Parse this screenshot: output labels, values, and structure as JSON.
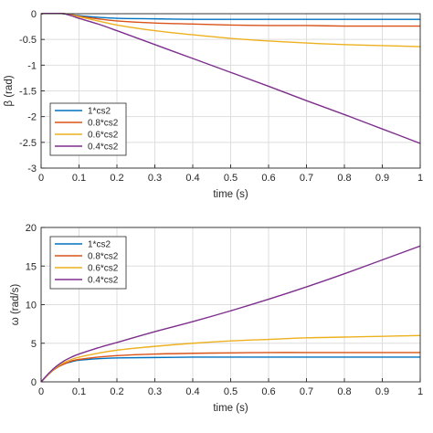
{
  "chart_data": [
    {
      "type": "line",
      "title": "",
      "xlabel": "time (s)",
      "ylabel": "β (rad)",
      "xlim": [
        0,
        1
      ],
      "ylim": [
        -3,
        0
      ],
      "xticks": [
        "0",
        "0.1",
        "0.2",
        "0.3",
        "0.4",
        "0.5",
        "0.6",
        "0.7",
        "0.8",
        "0.9",
        "1"
      ],
      "yticks": [
        "0",
        "-0.5",
        "-1",
        "-1.5",
        "-2",
        "-2.5",
        "-3"
      ],
      "grid": true,
      "legend_position": "bottom-left",
      "series": [
        {
          "name": "1*cs2",
          "color": "#0072bd",
          "x": [
            0,
            0.02,
            0.04,
            0.06,
            0.08,
            0.1,
            0.15,
            0.2,
            0.3,
            0.4,
            0.5,
            0.6,
            0.7,
            0.8,
            0.9,
            1.0
          ],
          "y": [
            0,
            0.01,
            0.01,
            0.0,
            -0.02,
            -0.04,
            -0.07,
            -0.09,
            -0.1,
            -0.11,
            -0.11,
            -0.11,
            -0.11,
            -0.11,
            -0.11,
            -0.11
          ]
        },
        {
          "name": "0.8*cs2",
          "color": "#d95319",
          "x": [
            0,
            0.02,
            0.04,
            0.06,
            0.08,
            0.1,
            0.15,
            0.2,
            0.3,
            0.4,
            0.5,
            0.6,
            0.7,
            0.8,
            0.9,
            1.0
          ],
          "y": [
            0,
            0.01,
            0.01,
            0.0,
            -0.02,
            -0.05,
            -0.1,
            -0.14,
            -0.18,
            -0.2,
            -0.22,
            -0.23,
            -0.23,
            -0.24,
            -0.24,
            -0.24
          ]
        },
        {
          "name": "0.6*cs2",
          "color": "#edb120",
          "x": [
            0,
            0.02,
            0.04,
            0.06,
            0.08,
            0.1,
            0.15,
            0.2,
            0.3,
            0.4,
            0.5,
            0.6,
            0.7,
            0.8,
            0.9,
            1.0
          ],
          "y": [
            0,
            0.01,
            0.01,
            0.0,
            -0.03,
            -0.06,
            -0.14,
            -0.22,
            -0.33,
            -0.41,
            -0.48,
            -0.53,
            -0.57,
            -0.6,
            -0.62,
            -0.64
          ]
        },
        {
          "name": "0.4*cs2",
          "color": "#7e2f8e",
          "x": [
            0,
            0.02,
            0.04,
            0.06,
            0.08,
            0.1,
            0.15,
            0.2,
            0.3,
            0.4,
            0.5,
            0.6,
            0.7,
            0.8,
            0.9,
            1.0
          ],
          "y": [
            0,
            0.01,
            0.01,
            0.0,
            -0.04,
            -0.09,
            -0.2,
            -0.33,
            -0.6,
            -0.87,
            -1.14,
            -1.41,
            -1.69,
            -1.96,
            -2.24,
            -2.52
          ]
        }
      ]
    },
    {
      "type": "line",
      "title": "",
      "xlabel": "time (s)",
      "ylabel": "ω (rad/s)",
      "xlim": [
        0,
        1
      ],
      "ylim": [
        0,
        20
      ],
      "xticks": [
        "0",
        "0.1",
        "0.2",
        "0.3",
        "0.4",
        "0.5",
        "0.6",
        "0.7",
        "0.8",
        "0.9",
        "1"
      ],
      "yticks": [
        "0",
        "5",
        "10",
        "15",
        "20"
      ],
      "grid": true,
      "legend_position": "top-left",
      "series": [
        {
          "name": "1*cs2",
          "color": "#0072bd",
          "x": [
            0,
            0.02,
            0.04,
            0.06,
            0.08,
            0.1,
            0.15,
            0.2,
            0.3,
            0.4,
            0.5,
            0.6,
            0.7,
            0.8,
            0.9,
            1.0
          ],
          "y": [
            0,
            1.0,
            1.8,
            2.3,
            2.6,
            2.8,
            3.0,
            3.1,
            3.15,
            3.2,
            3.2,
            3.2,
            3.2,
            3.2,
            3.2,
            3.2
          ]
        },
        {
          "name": "0.8*cs2",
          "color": "#d95319",
          "x": [
            0,
            0.02,
            0.04,
            0.06,
            0.08,
            0.1,
            0.15,
            0.2,
            0.3,
            0.4,
            0.5,
            0.6,
            0.7,
            0.8,
            0.9,
            1.0
          ],
          "y": [
            0,
            1.0,
            1.8,
            2.3,
            2.7,
            2.9,
            3.2,
            3.4,
            3.6,
            3.7,
            3.75,
            3.8,
            3.8,
            3.8,
            3.8,
            3.8
          ]
        },
        {
          "name": "0.6*cs2",
          "color": "#edb120",
          "x": [
            0,
            0.02,
            0.04,
            0.06,
            0.08,
            0.1,
            0.15,
            0.2,
            0.3,
            0.4,
            0.5,
            0.6,
            0.7,
            0.8,
            0.9,
            1.0
          ],
          "y": [
            0,
            1.0,
            1.9,
            2.5,
            2.9,
            3.2,
            3.7,
            4.1,
            4.6,
            5.0,
            5.3,
            5.5,
            5.7,
            5.8,
            5.9,
            6.0
          ]
        },
        {
          "name": "0.4*cs2",
          "color": "#7e2f8e",
          "x": [
            0,
            0.02,
            0.04,
            0.06,
            0.08,
            0.1,
            0.15,
            0.2,
            0.3,
            0.4,
            0.5,
            0.6,
            0.7,
            0.8,
            0.9,
            1.0
          ],
          "y": [
            0,
            1.1,
            2.0,
            2.7,
            3.2,
            3.6,
            4.4,
            5.1,
            6.5,
            7.8,
            9.2,
            10.7,
            12.3,
            14.0,
            15.8,
            17.6
          ]
        }
      ]
    }
  ]
}
